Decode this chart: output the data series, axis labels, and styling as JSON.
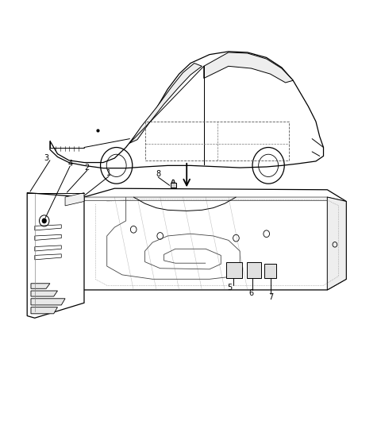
{
  "background_color": "#ffffff",
  "line_color": "#000000",
  "label_color": "#000000",
  "figure_width": 4.8,
  "figure_height": 5.45,
  "dpi": 100
}
